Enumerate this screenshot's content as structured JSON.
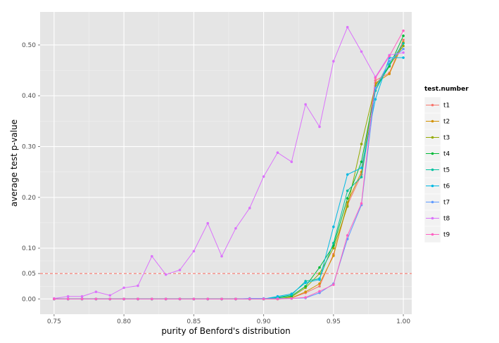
{
  "chart_data": {
    "type": "line",
    "xlabel": "purity of Benford's distribution",
    "ylabel": "average test p-value",
    "xlim": [
      0.74,
      1.006
    ],
    "ylim": [
      -0.03,
      0.565
    ],
    "x_ticks": [
      0.75,
      0.8,
      0.85,
      0.9,
      0.95,
      1.0
    ],
    "x_tick_labels": [
      "0.75",
      "0.80",
      "0.85",
      "0.90",
      "0.95",
      "1.00"
    ],
    "y_ticks": [
      0.0,
      0.05,
      0.1,
      0.2,
      0.3,
      0.4,
      0.5
    ],
    "y_tick_labels": [
      "0.00",
      "0.05",
      "0.10",
      "0.20",
      "0.30",
      "0.40",
      "0.50"
    ],
    "grid": true,
    "legend": {
      "title": "test.number",
      "position": "right"
    },
    "reference_line": {
      "y": 0.05,
      "style": "dashed",
      "color": "#f8766d"
    },
    "x": [
      0.75,
      0.76,
      0.77,
      0.78,
      0.79,
      0.8,
      0.81,
      0.82,
      0.83,
      0.84,
      0.85,
      0.86,
      0.87,
      0.88,
      0.89,
      0.9,
      0.91,
      0.92,
      0.93,
      0.94,
      0.95,
      0.96,
      0.97,
      0.98,
      0.99,
      1.0
    ],
    "series": [
      {
        "name": "t1",
        "color": "#F8766D",
        "values": [
          0,
          0,
          0,
          0,
          0,
          0,
          0,
          0,
          0,
          0,
          0,
          0,
          0,
          0,
          0,
          0,
          0,
          0.002,
          0.012,
          0.025,
          0.088,
          0.185,
          0.245,
          0.43,
          0.445,
          0.51
        ]
      },
      {
        "name": "t2",
        "color": "#D39200",
        "values": [
          0,
          0,
          0,
          0,
          0,
          0,
          0,
          0,
          0,
          0,
          0,
          0,
          0,
          0,
          0,
          0,
          0,
          0.002,
          0.014,
          0.03,
          0.085,
          0.19,
          0.25,
          0.425,
          0.443,
          0.505
        ]
      },
      {
        "name": "t3",
        "color": "#93AA00",
        "values": [
          0,
          0,
          0,
          0,
          0,
          0,
          0,
          0,
          0,
          0,
          0,
          0,
          0,
          0,
          0,
          0,
          0,
          0.004,
          0.022,
          0.05,
          0.1,
          0.182,
          0.305,
          0.42,
          0.46,
          0.498
        ]
      },
      {
        "name": "t4",
        "color": "#00BA38",
        "values": [
          0,
          0,
          0,
          0,
          0,
          0,
          0,
          0,
          0,
          0,
          0,
          0,
          0,
          0,
          0,
          0,
          0.002,
          0.006,
          0.025,
          0.062,
          0.105,
          0.198,
          0.27,
          0.415,
          0.458,
          0.518
        ]
      },
      {
        "name": "t5",
        "color": "#00C19F",
        "values": [
          0,
          0,
          0,
          0,
          0,
          0,
          0,
          0,
          0,
          0,
          0,
          0,
          0,
          0,
          0,
          0,
          0.003,
          0.008,
          0.035,
          0.04,
          0.11,
          0.213,
          0.24,
          0.41,
          0.462,
          0.503
        ]
      },
      {
        "name": "t6",
        "color": "#00B9E3",
        "values": [
          0,
          0,
          0,
          0,
          0,
          0,
          0,
          0,
          0,
          0,
          0,
          0,
          0,
          0,
          0,
          0,
          0.005,
          0.01,
          0.032,
          0.038,
          0.142,
          0.245,
          0.258,
          0.393,
          0.475,
          0.475
        ]
      },
      {
        "name": "t7",
        "color": "#619CFF",
        "values": [
          0,
          0,
          0,
          0,
          0,
          0,
          0,
          0,
          0,
          0,
          0,
          0,
          0,
          0,
          0.001,
          0.001,
          0.001,
          0.001,
          0.002,
          0.012,
          0.03,
          0.118,
          0.185,
          0.415,
          0.468,
          0.492
        ]
      },
      {
        "name": "t8",
        "color": "#DB72FB",
        "values": [
          0.001,
          0.005,
          0.005,
          0.014,
          0.007,
          0.022,
          0.026,
          0.084,
          0.048,
          0.057,
          0.094,
          0.149,
          0.084,
          0.139,
          0.179,
          0.241,
          0.288,
          0.27,
          0.383,
          0.339,
          0.468,
          0.535,
          0.487,
          0.437,
          0.48,
          0.485
        ]
      },
      {
        "name": "t9",
        "color": "#FF61C3",
        "values": [
          0,
          0,
          0,
          0,
          0,
          0,
          0,
          0,
          0,
          0,
          0,
          0,
          0,
          0,
          0,
          0,
          0,
          0.001,
          0.003,
          0.015,
          0.028,
          0.125,
          0.188,
          0.435,
          0.478,
          0.528
        ]
      }
    ]
  }
}
